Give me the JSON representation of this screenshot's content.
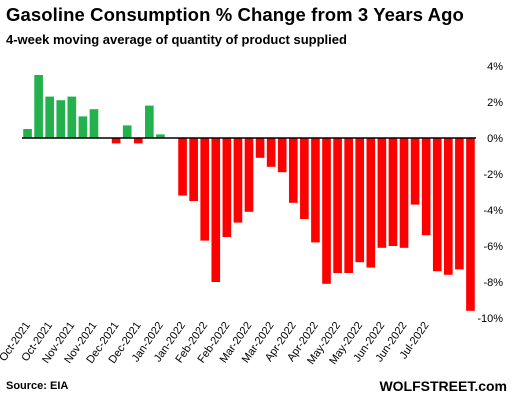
{
  "title": "Gasoline  Consumption  % Change from 3 Years Ago",
  "subtitle": "4-week moving average of quantity of product supplied",
  "source": "Source: EIA",
  "brand": "WOLFSTREET.com",
  "colors": {
    "positive": "#22b14c",
    "negative": "#ff0000",
    "zero_line": "#000000"
  },
  "chart_data": {
    "type": "bar",
    "ylim": [
      -10,
      4
    ],
    "yticks": [
      4,
      2,
      0,
      -2,
      -4,
      -6,
      -8,
      -10
    ],
    "ytick_format": "percent",
    "grid": false,
    "legend": "none",
    "x_tick_labels": [
      "Oct-2021",
      "Oct-2021",
      "Nov-2021",
      "Nov-2021",
      "Dec-2021",
      "Dec-2021",
      "Jan-2022",
      "Jan-2022",
      "Feb-2022",
      "Feb-2022",
      "Mar-2022",
      "Mar-2022",
      "Apr-2022",
      "Apr-2022",
      "May-2022",
      "May-2022",
      "Jun-2022",
      "Jun-2022",
      "Jul-2022"
    ],
    "x_tick_every": 2,
    "values": [
      0.5,
      3.5,
      2.3,
      2.1,
      2.3,
      1.2,
      1.6,
      0,
      -0.3,
      0.7,
      -0.3,
      1.8,
      0.2,
      0,
      -3.2,
      -3.5,
      -5.7,
      -8.0,
      -5.5,
      -4.7,
      -4.1,
      -1.1,
      -1.6,
      -1.9,
      -3.6,
      -4.5,
      -5.8,
      -8.1,
      -7.5,
      -7.5,
      -6.9,
      -7.2,
      -6.1,
      -6.0,
      -6.1,
      -3.7,
      -5.4,
      -7.4,
      -7.6,
      -7.3,
      -9.6
    ]
  }
}
